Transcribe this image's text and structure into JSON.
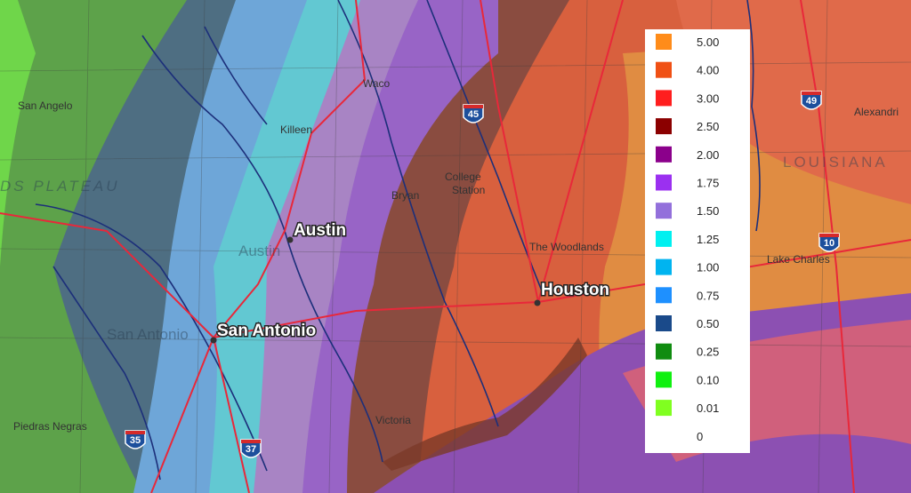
{
  "map": {
    "cities": [
      "Austin",
      "Houston",
      "San Antonio"
    ],
    "places": [
      "San Angelo",
      "Waco",
      "Killeen",
      "College",
      "Station",
      "Bryan",
      "The Woodlands",
      "Austin",
      "San Antonio",
      "Victoria",
      "Piedras Negras",
      "Lake Charles",
      "Alexandri",
      "LOUISIANA",
      "DS PLATEAU"
    ],
    "shields": [
      "45",
      "49",
      "10",
      "35",
      "37"
    ]
  },
  "legend": {
    "entries": [
      {
        "label": "5.00",
        "color": "#ff8c1a"
      },
      {
        "label": "4.00",
        "color": "#f05014"
      },
      {
        "label": "3.00",
        "color": "#ff1e1e"
      },
      {
        "label": "2.50",
        "color": "#8b0000"
      },
      {
        "label": "2.00",
        "color": "#8b008b"
      },
      {
        "label": "1.75",
        "color": "#9b30f0"
      },
      {
        "label": "1.50",
        "color": "#9370db"
      },
      {
        "label": "1.25",
        "color": "#00f0f0"
      },
      {
        "label": "1.00",
        "color": "#00b4f0"
      },
      {
        "label": "0.75",
        "color": "#1e90ff"
      },
      {
        "label": "0.50",
        "color": "#1a4a8a"
      },
      {
        "label": "0.25",
        "color": "#108c10"
      },
      {
        "label": "0.10",
        "color": "#10f010"
      },
      {
        "label": "0.01",
        "color": "#80ff20"
      },
      {
        "label": "0",
        "color": null
      }
    ]
  }
}
